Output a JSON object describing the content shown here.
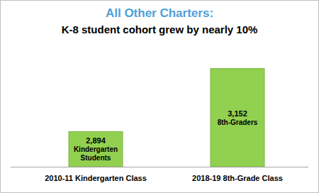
{
  "chart_data": {
    "type": "bar",
    "title": "All Other Charters:",
    "subtitle": "K-8 student cohort grew by nearly 10%",
    "categories": [
      "2010-11 Kindergarten Class",
      "2018-19 8th-Grade Class"
    ],
    "values": [
      2894,
      3152
    ],
    "value_labels": [
      "2,894",
      "3,152"
    ],
    "annotations": [
      "Kindergarten Students",
      "8th-Graders"
    ],
    "color": "#92d050",
    "ylim": [
      2750,
      3200
    ],
    "grid": false,
    "data_labels": true,
    "tick_labels": "x"
  }
}
